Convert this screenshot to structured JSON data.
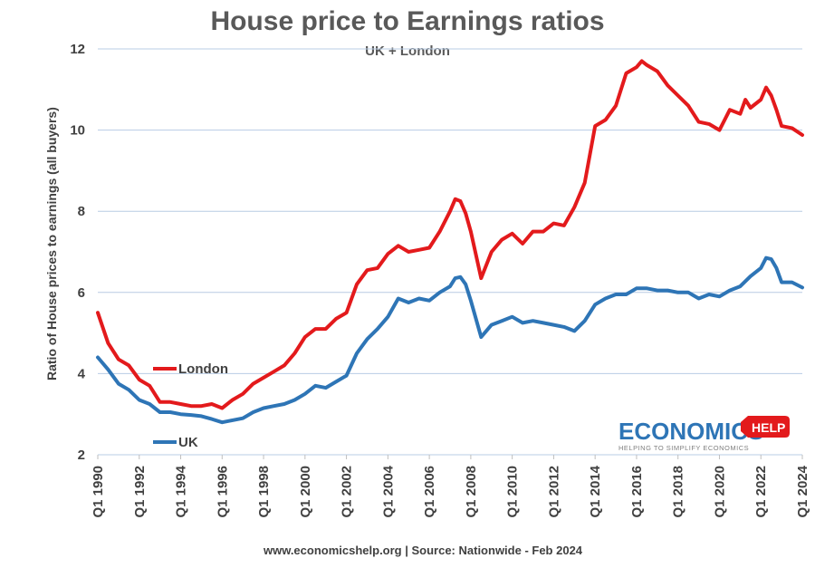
{
  "chart_data": {
    "type": "line",
    "title": "House price to Earnings ratios",
    "subtitle": "UK + London",
    "ylabel": "Ratio of House prices to earnings (all buyers)",
    "xlabel": "",
    "ylim": [
      2,
      12
    ],
    "yticks": [
      "2",
      "4",
      "6",
      "8",
      "10",
      "12"
    ],
    "ytick_values": [
      2,
      4,
      6,
      8,
      10,
      12
    ],
    "xlim": [
      1990,
      2024
    ],
    "xticks": [
      "Q1 1990",
      "Q1 1992",
      "Q1 1994",
      "Q1 1996",
      "Q1 1998",
      "Q1 2000",
      "Q1 2002",
      "Q1 2004",
      "Q1 2006",
      "Q1 2008",
      "Q1 2010",
      "Q1 2012",
      "Q1 2014",
      "Q1 2016",
      "Q1 2018",
      "Q1 2020",
      "Q1 2022",
      "Q1 2024"
    ],
    "xtick_values": [
      1990,
      1992,
      1994,
      1996,
      1998,
      2000,
      2002,
      2004,
      2006,
      2008,
      2010,
      2012,
      2014,
      2016,
      2018,
      2020,
      2022,
      2024
    ],
    "grid": true,
    "series": [
      {
        "name": "London",
        "color": "#e31a1c",
        "x": [
          1990,
          1990.5,
          1991,
          1991.5,
          1992,
          1992.5,
          1993,
          1993.5,
          1994,
          1994.5,
          1995,
          1995.5,
          1996,
          1996.5,
          1997,
          1997.5,
          1998,
          1998.5,
          1999,
          1999.5,
          2000,
          2000.5,
          2001,
          2001.5,
          2002,
          2002.5,
          2003,
          2003.5,
          2004,
          2004.5,
          2005,
          2005.5,
          2006,
          2006.5,
          2007,
          2007.25,
          2007.5,
          2007.75,
          2008,
          2008.5,
          2009,
          2009.5,
          2010,
          2010.5,
          2011,
          2011.5,
          2012,
          2012.5,
          2013,
          2013.5,
          2014,
          2014.5,
          2015,
          2015.5,
          2016,
          2016.25,
          2016.5,
          2017,
          2017.5,
          2018,
          2018.5,
          2019,
          2019.5,
          2020,
          2020.5,
          2021,
          2021.25,
          2021.5,
          2022,
          2022.25,
          2022.5,
          2022.75,
          2023,
          2023.5,
          2024
        ],
        "values": [
          5.5,
          4.75,
          4.35,
          4.2,
          3.85,
          3.7,
          3.3,
          3.3,
          3.25,
          3.2,
          3.2,
          3.25,
          3.15,
          3.35,
          3.5,
          3.75,
          3.9,
          4.05,
          4.2,
          4.5,
          4.9,
          5.1,
          5.1,
          5.35,
          5.5,
          6.2,
          6.55,
          6.6,
          6.95,
          7.15,
          7.0,
          7.05,
          7.1,
          7.5,
          8.0,
          8.3,
          8.25,
          7.95,
          7.5,
          6.35,
          7.0,
          7.3,
          7.45,
          7.2,
          7.5,
          7.5,
          7.7,
          7.65,
          8.1,
          8.7,
          10.1,
          10.25,
          10.6,
          11.4,
          11.55,
          11.7,
          11.6,
          11.45,
          11.1,
          10.85,
          10.6,
          10.2,
          10.15,
          10.0,
          10.5,
          10.4,
          10.75,
          10.55,
          10.75,
          11.05,
          10.85,
          10.5,
          10.1,
          10.05,
          9.88
        ]
      },
      {
        "name": "UK",
        "color": "#2e75b6",
        "x": [
          1990,
          1990.5,
          1991,
          1991.5,
          1992,
          1992.5,
          1993,
          1993.5,
          1994,
          1994.5,
          1995,
          1995.5,
          1996,
          1996.5,
          1997,
          1997.5,
          1998,
          1998.5,
          1999,
          1999.5,
          2000,
          2000.5,
          2001,
          2001.5,
          2002,
          2002.5,
          2003,
          2003.5,
          2004,
          2004.5,
          2005,
          2005.5,
          2006,
          2006.5,
          2007,
          2007.25,
          2007.5,
          2007.75,
          2008,
          2008.5,
          2009,
          2009.5,
          2010,
          2010.5,
          2011,
          2011.5,
          2012,
          2012.5,
          2013,
          2013.5,
          2014,
          2014.5,
          2015,
          2015.5,
          2016,
          2016.5,
          2017,
          2017.5,
          2018,
          2018.5,
          2019,
          2019.5,
          2020,
          2020.5,
          2021,
          2021.5,
          2022,
          2022.25,
          2022.5,
          2022.75,
          2023,
          2023.5,
          2024
        ],
        "values": [
          4.4,
          4.1,
          3.75,
          3.6,
          3.35,
          3.25,
          3.05,
          3.05,
          3.0,
          2.98,
          2.95,
          2.88,
          2.8,
          2.85,
          2.9,
          3.05,
          3.15,
          3.2,
          3.25,
          3.35,
          3.5,
          3.7,
          3.65,
          3.8,
          3.95,
          4.5,
          4.85,
          5.1,
          5.4,
          5.85,
          5.75,
          5.85,
          5.8,
          6.0,
          6.15,
          6.35,
          6.38,
          6.2,
          5.8,
          4.9,
          5.2,
          5.3,
          5.4,
          5.25,
          5.3,
          5.25,
          5.2,
          5.15,
          5.05,
          5.3,
          5.7,
          5.85,
          5.95,
          5.95,
          6.1,
          6.1,
          6.05,
          6.05,
          6.0,
          6.0,
          5.85,
          5.95,
          5.9,
          6.05,
          6.15,
          6.4,
          6.6,
          6.85,
          6.82,
          6.6,
          6.25,
          6.25,
          6.12
        ]
      }
    ],
    "legend": [
      {
        "name": "London",
        "color": "#e31a1c"
      },
      {
        "name": "UK",
        "color": "#2e75b6"
      }
    ]
  },
  "logo": {
    "main": "ECONOMICS",
    "badge": "HELP",
    "tagline": "HELPING TO SIMPLIFY ECONOMICS"
  },
  "footer": {
    "source": "www.economicshelp.org | Source: Nationwide - Feb 2024"
  },
  "colors": {
    "accent": "#2e75b6",
    "london": "#e31a1c",
    "grid": "#b8cce4"
  }
}
